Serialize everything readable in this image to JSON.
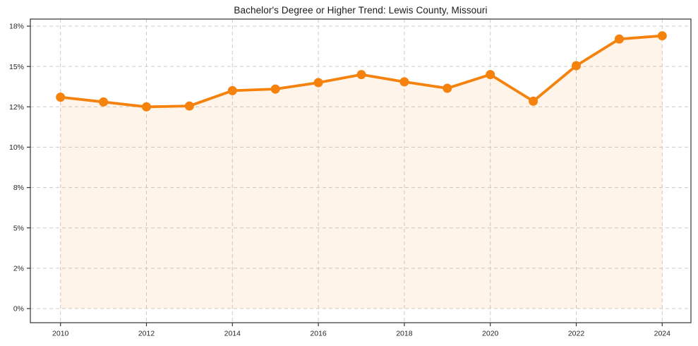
{
  "chart_data": {
    "type": "line",
    "title": "Bachelor's Degree or Higher Trend: Lewis County, Missouri",
    "x": [
      2010,
      2011,
      2012,
      2013,
      2014,
      2015,
      2016,
      2017,
      2018,
      2019,
      2020,
      2021,
      2022,
      2023,
      2024
    ],
    "series": [
      {
        "name": "Bachelor's Degree or Higher (%)",
        "values": [
          13.1,
          12.8,
          12.5,
          12.55,
          13.5,
          13.6,
          14.0,
          14.5,
          14.05,
          13.65,
          14.5,
          12.85,
          15.05,
          16.7,
          16.9
        ]
      }
    ],
    "xlabel": "",
    "ylabel": "",
    "xtick_years": [
      2010,
      2012,
      2014,
      2016,
      2018,
      2020,
      2022,
      2024
    ],
    "xtick_labels": [
      "2010",
      "2012",
      "2014",
      "2016",
      "2018",
      "2020",
      "2022",
      "2024"
    ],
    "ytick_values": [
      0,
      2.5,
      5,
      7.5,
      10,
      12.5,
      15,
      17.5
    ],
    "ytick_labels": [
      "0%",
      "2%",
      "5%",
      "8%",
      "10%",
      "12%",
      "15%",
      "18%"
    ],
    "ylim": [
      0,
      17.5
    ],
    "grid": true,
    "grid_style": "dashed",
    "legend": "none",
    "marker": "circle",
    "colors": {
      "line": "#f5820d",
      "marker": "#f5820d",
      "area_fill_rgba": "rgba(245,130,13,0.09)",
      "grid": "#cccccc",
      "spine": "#333333",
      "title_text": "#1a1a1a",
      "tick_text": "#262626",
      "background": "#ffffff"
    }
  }
}
